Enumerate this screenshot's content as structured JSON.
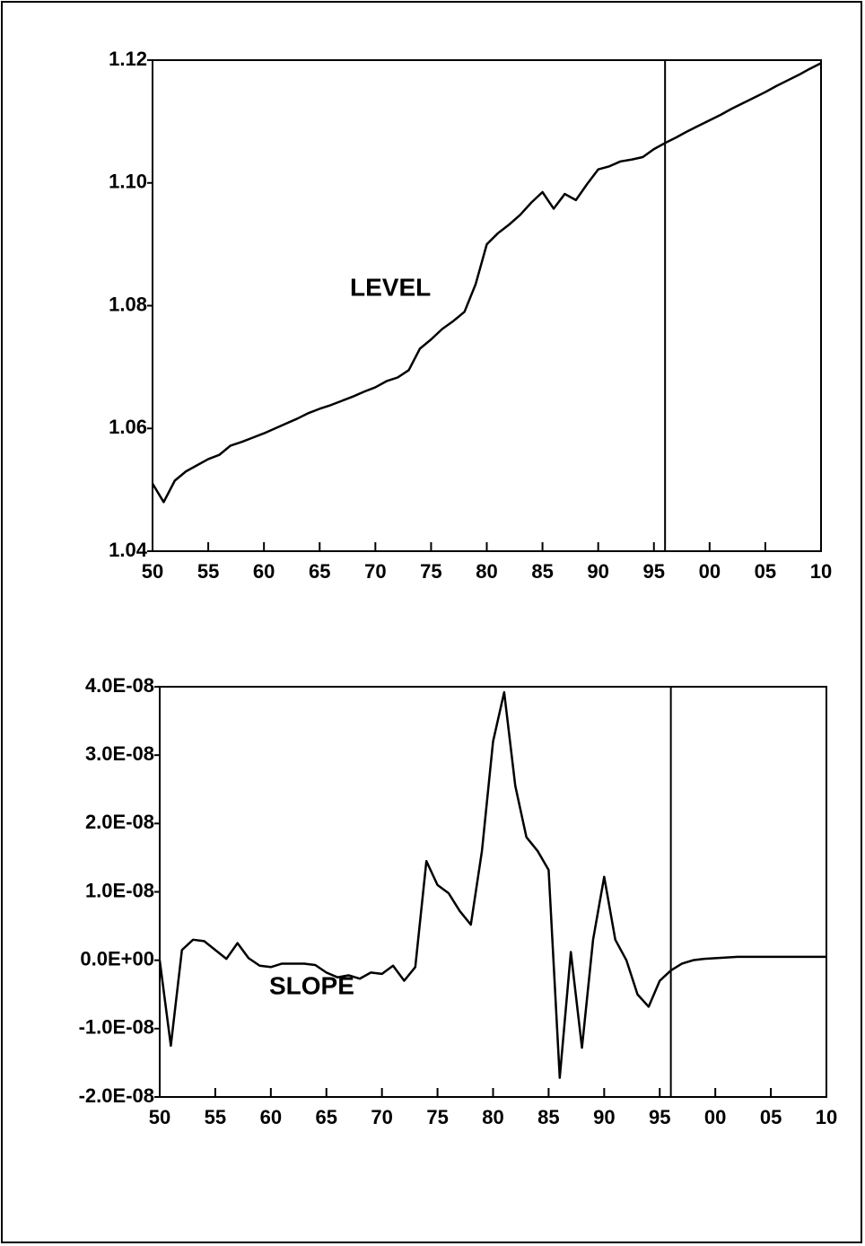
{
  "chart_data": [
    {
      "type": "line",
      "annotation": "LEVEL",
      "x": [
        1950,
        1951,
        1952,
        1953,
        1954,
        1955,
        1956,
        1957,
        1958,
        1959,
        1960,
        1961,
        1962,
        1963,
        1964,
        1965,
        1966,
        1967,
        1968,
        1969,
        1970,
        1971,
        1972,
        1973,
        1974,
        1975,
        1976,
        1977,
        1978,
        1979,
        1980,
        1981,
        1982,
        1983,
        1984,
        1985,
        1986,
        1987,
        1988,
        1989,
        1990,
        1991,
        1992,
        1993,
        1994,
        1995,
        1996,
        1997,
        1998,
        1999,
        2000,
        2001,
        2002,
        2003,
        2004,
        2005,
        2006,
        2007,
        2008,
        2009,
        2010
      ],
      "series": [
        {
          "color": "#000000",
          "values": [
            1.051,
            1.048,
            1.0515,
            1.053,
            1.054,
            1.055,
            1.0557,
            1.0572,
            1.0578,
            1.0585,
            1.0592,
            1.06,
            1.0608,
            1.0616,
            1.0625,
            1.0632,
            1.0638,
            1.0645,
            1.0652,
            1.066,
            1.0667,
            1.0677,
            1.0683,
            1.0695,
            1.073,
            1.0745,
            1.0762,
            1.0775,
            1.079,
            1.0835,
            1.09,
            1.0918,
            1.0932,
            1.0948,
            1.0968,
            1.0985,
            1.0958,
            1.0982,
            1.0972,
            1.0998,
            1.1022,
            1.1027,
            1.1035,
            1.1038,
            1.1042,
            1.1055,
            1.1065,
            1.1074,
            1.1084,
            1.1093,
            1.1102,
            1.1111,
            1.1121,
            1.113,
            1.1139,
            1.1148,
            1.1158,
            1.1167,
            1.1176,
            1.1186,
            1.1195
          ]
        }
      ],
      "vline": 1996,
      "xlim": [
        1950,
        2010
      ],
      "xticks": [
        {
          "value": 1950,
          "label": "50"
        },
        {
          "value": 1955,
          "label": "55"
        },
        {
          "value": 1960,
          "label": "60"
        },
        {
          "value": 1965,
          "label": "65"
        },
        {
          "value": 1970,
          "label": "70"
        },
        {
          "value": 1975,
          "label": "75"
        },
        {
          "value": 1980,
          "label": "80"
        },
        {
          "value": 1985,
          "label": "85"
        },
        {
          "value": 1990,
          "label": "90"
        },
        {
          "value": 1995,
          "label": "95"
        },
        {
          "value": 2000,
          "label": "00"
        },
        {
          "value": 2005,
          "label": "05"
        },
        {
          "value": 2010,
          "label": "10"
        }
      ],
      "ylim": [
        1.04,
        1.12
      ],
      "yticks": [
        1.04,
        1.06,
        1.08,
        {
          "value": 1.1,
          "label": "1.10"
        },
        1.12
      ]
    },
    {
      "type": "line",
      "annotation": "SLOPE",
      "x": [
        1950,
        1951,
        1952,
        1953,
        1954,
        1955,
        1956,
        1957,
        1958,
        1959,
        1960,
        1961,
        1962,
        1963,
        1964,
        1965,
        1966,
        1967,
        1968,
        1969,
        1970,
        1971,
        1972,
        1973,
        1974,
        1975,
        1976,
        1977,
        1978,
        1979,
        1980,
        1981,
        1982,
        1983,
        1984,
        1985,
        1986,
        1987,
        1988,
        1989,
        1990,
        1991,
        1992,
        1993,
        1994,
        1995,
        1996,
        1997,
        1998,
        1999,
        2000,
        2001,
        2002,
        2003,
        2004,
        2005,
        2006,
        2007,
        2008,
        2009,
        2010
      ],
      "series": [
        {
          "color": "#000000",
          "values": [
            0,
            -1.25e-08,
            1.5e-09,
            3e-09,
            2.8e-09,
            1.5e-09,
            2e-10,
            2.5e-09,
            3e-10,
            -8e-10,
            -1e-09,
            -5e-10,
            -5e-10,
            -5e-10,
            -7e-10,
            -1.8e-09,
            -2.5e-09,
            -2.2e-09,
            -2.7e-09,
            -1.8e-09,
            -2e-09,
            -8e-10,
            -3e-09,
            -1e-09,
            1.45e-08,
            1.1e-08,
            9.8e-09,
            7.2e-09,
            5.2e-09,
            1.6e-08,
            3.2e-08,
            3.92e-08,
            2.55e-08,
            1.8e-08,
            1.6e-08,
            1.32e-08,
            -1.72e-08,
            1.2e-09,
            -1.28e-08,
            3e-09,
            1.22e-08,
            3e-09,
            0,
            -5e-09,
            -6.8e-09,
            -3e-09,
            -1.5e-09,
            -5e-10,
            0,
            2e-10,
            3e-10,
            4e-10,
            5e-10,
            5e-10,
            5e-10,
            5e-10,
            5e-10,
            5e-10,
            5e-10,
            5e-10,
            5e-10
          ]
        }
      ],
      "vline": 1996,
      "xlim": [
        1950,
        2010
      ],
      "xticks": [
        {
          "value": 1950,
          "label": "50"
        },
        {
          "value": 1955,
          "label": "55"
        },
        {
          "value": 1960,
          "label": "60"
        },
        {
          "value": 1965,
          "label": "65"
        },
        {
          "value": 1970,
          "label": "70"
        },
        {
          "value": 1975,
          "label": "75"
        },
        {
          "value": 1980,
          "label": "80"
        },
        {
          "value": 1985,
          "label": "85"
        },
        {
          "value": 1990,
          "label": "90"
        },
        {
          "value": 1995,
          "label": "95"
        },
        {
          "value": 2000,
          "label": "00"
        },
        {
          "value": 2005,
          "label": "05"
        },
        {
          "value": 2010,
          "label": "10"
        }
      ],
      "ylim": [
        -2e-08,
        4e-08
      ],
      "yticks": [
        {
          "value": -2e-08,
          "label": "-2.0E-08"
        },
        {
          "value": -1e-08,
          "label": "-1.0E-08"
        },
        {
          "value": 0,
          "label": "0.0E+00"
        },
        {
          "value": 1e-08,
          "label": "1.0E-08"
        },
        {
          "value": 2e-08,
          "label": "2.0E-08"
        },
        {
          "value": 3e-08,
          "label": "3.0E-08"
        },
        {
          "value": 4e-08,
          "label": "4.0E-08"
        }
      ]
    }
  ]
}
